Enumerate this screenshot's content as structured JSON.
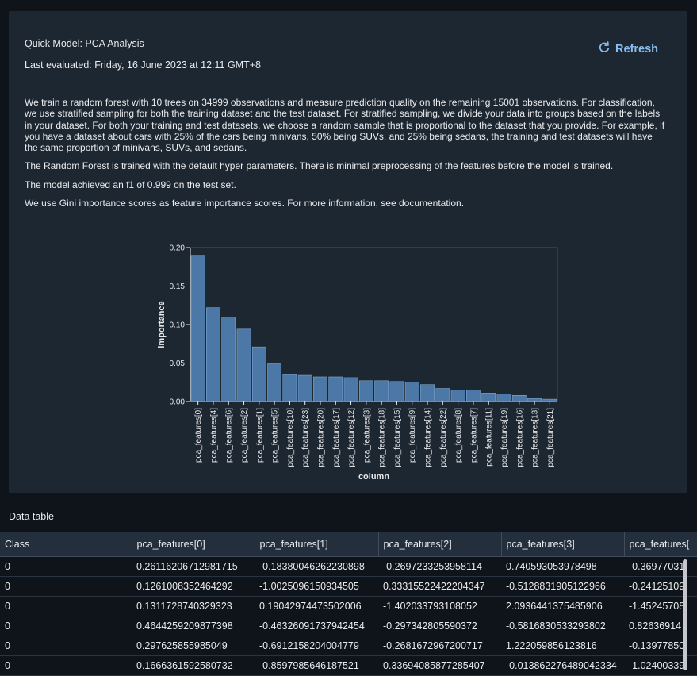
{
  "panel": {
    "title": "Quick Model: PCA Analysis",
    "last_evaluated": "Last evaluated: Friday, 16 June 2023 at 12:11 GMT+8",
    "refresh_label": "Refresh",
    "paragraphs": [
      "We train a random forest with 10 trees on 34999 observations and measure prediction quality on the remaining 15001 observations. For classification, we use stratified sampling for both the training dataset and the test dataset. For stratified sampling, we divide your data into groups based on the labels in your dataset. For both your training and test datasets, we choose a random sample that is proportional to the dataset that you provide. For example, if you have a dataset about cars with 25% of the cars being minivans, 50% being SUVs, and 25% being sedans, the training and test datasets will have the same proportion of minivans, SUVs, and sedans.",
      "The Random Forest is trained with the default hyper parameters. There is minimal preprocessing of the features before the model is trained.",
      "The model achieved an f1 of 0.999 on the test set.",
      "We use Gini importance scores as feature importance scores. For more information, see documentation."
    ]
  },
  "chart_data": {
    "type": "bar",
    "xlabel": "column",
    "ylabel": "importance",
    "ylim": [
      0,
      0.2
    ],
    "yticks": [
      "0.00",
      "0.05",
      "0.10",
      "0.15",
      "0.20"
    ],
    "grid": false,
    "bar_color": "#4c78a8",
    "categories": [
      "pca_features[0]",
      "pca_features[4]",
      "pca_features[6]",
      "pca_features[2]",
      "pca_features[1]",
      "pca_features[5]",
      "pca_features[10]",
      "pca_features[23]",
      "pca_features[20]",
      "pca_features[17]",
      "pca_features[12]",
      "pca_features[3]",
      "pca_features[18]",
      "pca_features[15]",
      "pca_features[9]",
      "pca_features[14]",
      "pca_features[22]",
      "pca_features[8]",
      "pca_features[7]",
      "pca_features[11]",
      "pca_features[19]",
      "pca_features[16]",
      "pca_features[13]",
      "pca_features[21]"
    ],
    "values": [
      0.189,
      0.122,
      0.11,
      0.094,
      0.071,
      0.049,
      0.035,
      0.034,
      0.032,
      0.032,
      0.031,
      0.027,
      0.027,
      0.026,
      0.025,
      0.022,
      0.017,
      0.015,
      0.015,
      0.011,
      0.01,
      0.008,
      0.004,
      0.003
    ]
  },
  "data_table": {
    "label": "Data table",
    "columns": [
      "Class",
      "pca_features[0]",
      "pca_features[1]",
      "pca_features[2]",
      "pca_features[3]",
      "pca_features["
    ],
    "rows": [
      [
        "0",
        "0.26116206712981715",
        "-0.18380046262230898",
        "-0.2697233253958114",
        "0.740593053978498",
        "-0.36977031"
      ],
      [
        "0",
        "0.1261008352464292",
        "-1.0025096150934505",
        "0.33315522422204347",
        "-0.5128831905122966",
        "-0.24125109"
      ],
      [
        "0",
        "0.1311728740329323",
        "0.19042974473502006",
        "-1.402033793108052",
        "2.0936441375485906",
        "-1.45245708"
      ],
      [
        "0",
        "0.4644259209877398",
        "-0.46326091737942454",
        "-0.297342805590372",
        "-0.5816830533293802",
        "0.82636914"
      ],
      [
        "0",
        "0.297625855985049",
        "-0.6912158204004779",
        "-0.2681672967200717",
        "1.222059856123816",
        "-0.13977850"
      ],
      [
        "0",
        "0.1666361592580732",
        "-0.8597985646187521",
        "0.33694085877285407",
        "-0.013862276489042334",
        "-1.02400339"
      ]
    ]
  }
}
